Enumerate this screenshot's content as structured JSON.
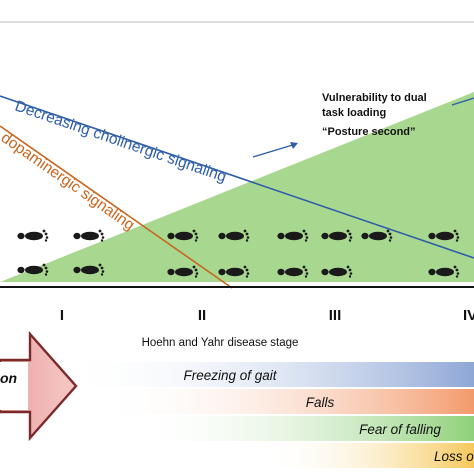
{
  "labels": {
    "cholinergic": "Decreasing cholinergic signaling",
    "dopaminergic": "dopaminergic signaling",
    "vulnerability_line1": "Vulnerability to dual",
    "vulnerability_line2": "task loading",
    "posture_second": "“Posture second”",
    "stage_axis": "Hoehn and Yahr disease stage",
    "arrow_text": "on"
  },
  "stages": [
    "I",
    "II",
    "III",
    "IV"
  ],
  "bands": [
    {
      "label": "Freezing of gait",
      "color": "#8ea7d6"
    },
    {
      "label": "Falls",
      "color": "#f39a6c"
    },
    {
      "label": "Fear of falling",
      "color": "#8fd07a"
    },
    {
      "label": "Loss o",
      "color": "#f6c85a"
    }
  ],
  "colors": {
    "cholinergic": "#2e5ea8",
    "dopaminergic": "#c8661f",
    "triangle": "#a8d88f",
    "arrow_fill": "#f0b3b0",
    "arrow_stroke": "#7a2a2a"
  },
  "icons": {
    "footprint": "footprint-icon"
  }
}
